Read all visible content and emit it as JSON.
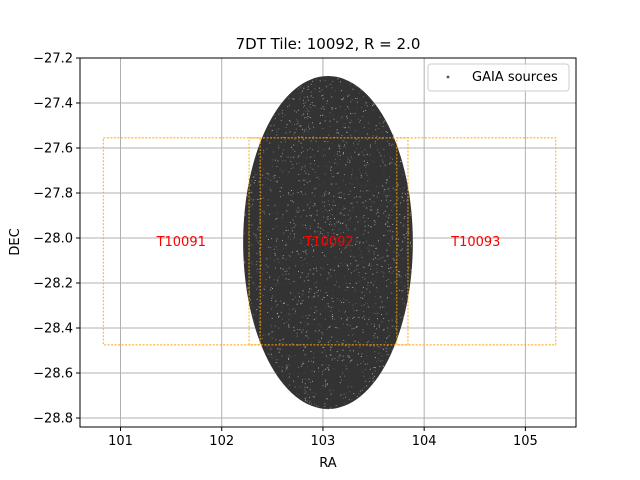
{
  "chart_data": {
    "type": "scatter",
    "title": "7DT Tile: 10092, R = 2.0",
    "xlabel": "RA",
    "ylabel": "DEC",
    "xlim": [
      100.6,
      105.5
    ],
    "ylim": [
      -28.84,
      -27.2
    ],
    "xticks": [
      101,
      102,
      103,
      104,
      105
    ],
    "xtick_labels": [
      "101",
      "102",
      "103",
      "104",
      "105"
    ],
    "yticks": [
      -27.2,
      -27.4,
      -27.6,
      -27.8,
      -28.0,
      -28.2,
      -28.4,
      -28.6,
      -28.8
    ],
    "ytick_labels": [
      "−27.2",
      "−27.4",
      "−27.6",
      "−27.8",
      "−28.0",
      "−28.2",
      "−28.4",
      "−28.6",
      "−28.8"
    ],
    "grid": true,
    "legend": {
      "placement": "top-right",
      "entries": [
        "GAIA sources"
      ]
    },
    "series": [
      {
        "name": "GAIA sources",
        "marker_color": "#333333",
        "region": {
          "shape": "circle-on-sky",
          "center_ra": 103.05,
          "center_dec": -28.02,
          "radius_deg": 0.74
        }
      }
    ],
    "tiles": [
      {
        "label": "T10091",
        "ra_min": 100.83,
        "ra_max": 102.38,
        "dec_min": -28.475,
        "dec_max": -27.555,
        "center_ra": 101.6,
        "center_dec": -28.015
      },
      {
        "label": "T10092",
        "ra_min": 102.27,
        "ra_max": 103.84,
        "dec_min": -28.475,
        "dec_max": -27.555,
        "center_ra": 103.06,
        "center_dec": -28.015
      },
      {
        "label": "T10093",
        "ra_min": 103.73,
        "ra_max": 105.3,
        "dec_min": -28.475,
        "dec_max": -27.555,
        "center_ra": 104.51,
        "center_dec": -28.015
      }
    ],
    "colors": {
      "tile_outline": "#ffa500",
      "tile_label": "#ff0000",
      "grid": "#b0b0b0",
      "points": "#333333"
    }
  }
}
